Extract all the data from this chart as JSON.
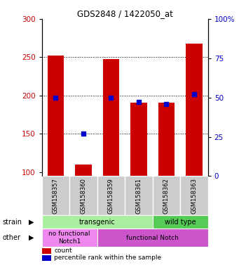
{
  "title": "GDS2848 / 1422050_at",
  "samples": [
    "GSM158357",
    "GSM158360",
    "GSM158359",
    "GSM158361",
    "GSM158362",
    "GSM158363"
  ],
  "counts": [
    252,
    110,
    248,
    191,
    191,
    268
  ],
  "percentiles": [
    50,
    27,
    50,
    47,
    46,
    52
  ],
  "ylim_left": [
    95,
    300
  ],
  "ylim_right": [
    0,
    100
  ],
  "yticks_left": [
    100,
    150,
    200,
    250,
    300
  ],
  "yticks_right": [
    0,
    25,
    50,
    75,
    100
  ],
  "bar_color": "#cc0000",
  "dot_color": "#0000cc",
  "bar_width": 0.6,
  "strain_groups": [
    {
      "label": "transgenic",
      "cols": [
        0,
        1,
        2,
        3
      ],
      "color": "#aaeea0"
    },
    {
      "label": "wild type",
      "cols": [
        4,
        5
      ],
      "color": "#55cc55"
    }
  ],
  "other_groups": [
    {
      "label": "no functional\nNotch1",
      "cols": [
        0,
        1
      ],
      "color": "#ee88ee"
    },
    {
      "label": "functional Notch",
      "cols": [
        2,
        3,
        4,
        5
      ],
      "color": "#cc55cc"
    }
  ],
  "strain_label": "strain",
  "other_label": "other",
  "legend_count_label": "count",
  "legend_pct_label": "percentile rank within the sample",
  "tick_label_color_left": "#cc0000",
  "tick_label_color_right": "#0000cc",
  "xlabel_bg": "#cccccc",
  "grid_lines": [
    150,
    200,
    250
  ]
}
